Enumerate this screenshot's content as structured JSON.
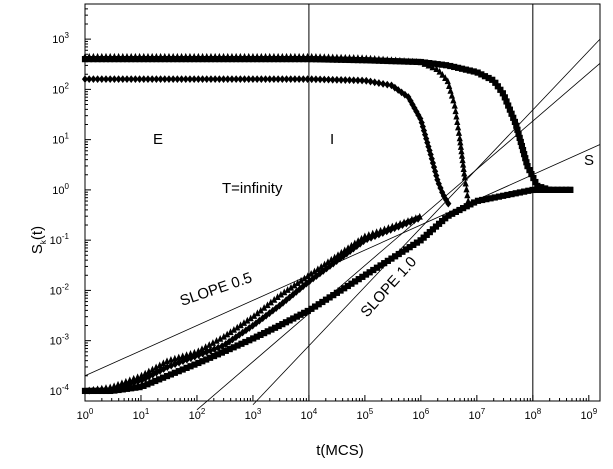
{
  "chart_data": {
    "type": "scatter",
    "title": "",
    "xlabel": "t(MCS)",
    "ylabel": {
      "main": "S",
      "sub": "k",
      "tail": "(t)"
    },
    "x_scale": "log",
    "y_scale": "log",
    "xlim": [
      1,
      1585000000
    ],
    "ylim": [
      6.3e-05,
      5000
    ],
    "x_ticks": [
      {
        "value": 1,
        "base": "10",
        "exp": "0"
      },
      {
        "value": 10,
        "base": "10",
        "exp": "1"
      },
      {
        "value": 100,
        "base": "10",
        "exp": "2"
      },
      {
        "value": 1000,
        "base": "10",
        "exp": "3"
      },
      {
        "value": 10000,
        "base": "10",
        "exp": "4"
      },
      {
        "value": 100000,
        "base": "10",
        "exp": "5"
      },
      {
        "value": 1000000,
        "base": "10",
        "exp": "6"
      },
      {
        "value": 10000000,
        "base": "10",
        "exp": "7"
      },
      {
        "value": 100000000,
        "base": "10",
        "exp": "8"
      },
      {
        "value": 1000000000,
        "base": "10",
        "exp": "9"
      }
    ],
    "y_ticks": [
      {
        "value": 0.0001,
        "base": "10",
        "exp": "-4"
      },
      {
        "value": 0.001,
        "base": "10",
        "exp": "-3"
      },
      {
        "value": 0.01,
        "base": "10",
        "exp": "-2"
      },
      {
        "value": 0.1,
        "base": "10",
        "exp": "-1"
      },
      {
        "value": 1,
        "base": "10",
        "exp": "0"
      },
      {
        "value": 10,
        "base": "10",
        "exp": "1"
      },
      {
        "value": 100,
        "base": "10",
        "exp": "2"
      },
      {
        "value": 1000,
        "base": "10",
        "exp": "3"
      }
    ],
    "vertical_lines": [
      10000,
      100000000
    ],
    "reference_lines": [
      {
        "label": "SLOPE 0.5",
        "x": [
          1,
          1585000000
        ],
        "y": [
          0.0002,
          8.0
        ]
      },
      {
        "label": "SLOPE 1.0",
        "x": [
          100,
          1585000000
        ],
        "y": [
          4.2e-05,
          330.0
        ]
      },
      {
        "label": "",
        "x": [
          1000,
          1585000000
        ],
        "y": [
          5.3e-05,
          1000.0
        ]
      }
    ],
    "annotations": [
      "E",
      "I",
      "S",
      "T=infinity"
    ],
    "series": [
      {
        "marker": "square",
        "ordered_x": [
          1,
          3,
          10,
          100,
          1000,
          10000,
          100000,
          1000000,
          3000000,
          10000000,
          20000000,
          30000000,
          50000000,
          80000000,
          120000000,
          200000000,
          500000000
        ],
        "ordered_y": [
          400,
          400,
          400,
          400,
          400,
          400,
          380,
          350,
          300,
          220,
          150,
          80,
          20,
          3,
          1.2,
          1.0,
          1.0
        ],
        "disordered_x": [
          1,
          3,
          10,
          30,
          100,
          300,
          1000,
          3000,
          10000,
          100000,
          1000000,
          3000000,
          10000000,
          100000000,
          500000000
        ],
        "disordered_y": [
          0.0001,
          0.0001,
          0.00012,
          0.0002,
          0.00035,
          0.0006,
          0.0011,
          0.002,
          0.004,
          0.02,
          0.1,
          0.3,
          0.6,
          1.0,
          1.0
        ]
      },
      {
        "marker": "triangle",
        "ordered_x": [
          1,
          3,
          10,
          100,
          1000,
          10000,
          100000,
          1000000,
          2000000,
          3000000,
          4000000,
          5000000,
          6000000,
          7000000
        ],
        "ordered_y": [
          450,
          450,
          450,
          450,
          450,
          450,
          420,
          350,
          250,
          150,
          50,
          10,
          2,
          0.6
        ],
        "disordered_x": [
          1,
          3,
          10,
          30,
          100,
          300,
          1000,
          3000,
          10000,
          100000,
          1000000
        ],
        "disordered_y": [
          0.0001,
          0.00012,
          0.0002,
          0.0004,
          0.0006,
          0.0012,
          0.003,
          0.008,
          0.02,
          0.12,
          0.3
        ]
      },
      {
        "marker": "diamond",
        "ordered_x": [
          1,
          3,
          10,
          100,
          1000,
          10000,
          100000,
          300000,
          600000,
          1000000,
          1500000,
          2000000,
          2500000,
          3200000
        ],
        "ordered_y": [
          160,
          160,
          160,
          160,
          160,
          160,
          150,
          120,
          70,
          25,
          5,
          1.5,
          0.8,
          0.5
        ],
        "disordered_x": [
          1,
          3,
          10,
          30,
          100,
          300,
          1000,
          3000,
          10000,
          100000,
          1000000
        ],
        "disordered_y": [
          0.0001,
          0.00011,
          0.00016,
          0.0003,
          0.0005,
          0.0008,
          0.002,
          0.005,
          0.015,
          0.1,
          0.28
        ]
      }
    ]
  }
}
